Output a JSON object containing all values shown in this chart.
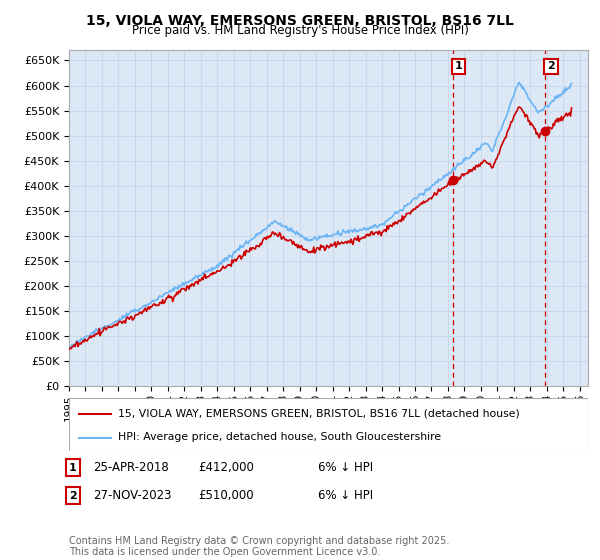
{
  "title_line1": "15, VIOLA WAY, EMERSONS GREEN, BRISTOL, BS16 7LL",
  "title_line2": "Price paid vs. HM Land Registry's House Price Index (HPI)",
  "ylim": [
    0,
    670000
  ],
  "yticks": [
    0,
    50000,
    100000,
    150000,
    200000,
    250000,
    300000,
    350000,
    400000,
    450000,
    500000,
    550000,
    600000,
    650000
  ],
  "ytick_labels": [
    "£0",
    "£50K",
    "£100K",
    "£150K",
    "£200K",
    "£250K",
    "£300K",
    "£350K",
    "£400K",
    "£450K",
    "£500K",
    "£550K",
    "£600K",
    "£650K"
  ],
  "hpi_color": "#6ab4f5",
  "price_color": "#cc0000",
  "vline_color": "#cc0000",
  "grid_color": "#c8d8e8",
  "background_color": "#dce8f5",
  "sale1_x": 2018.32,
  "sale1_price": 412000,
  "sale2_x": 2023.92,
  "sale2_price": 510000,
  "legend_line1": "15, VIOLA WAY, EMERSONS GREEN, BRISTOL, BS16 7LL (detached house)",
  "legend_line2": "HPI: Average price, detached house, South Gloucestershire",
  "ann1_num": "1",
  "ann1_date": "25-APR-2018",
  "ann1_price": "£412,000",
  "ann1_hpi": "6% ↓ HPI",
  "ann2_num": "2",
  "ann2_date": "27-NOV-2023",
  "ann2_price": "£510,000",
  "ann2_hpi": "6% ↓ HPI",
  "footer": "Contains HM Land Registry data © Crown copyright and database right 2025.\nThis data is licensed under the Open Government Licence v3.0.",
  "xlim_start": 1995.0,
  "xlim_end": 2026.5
}
